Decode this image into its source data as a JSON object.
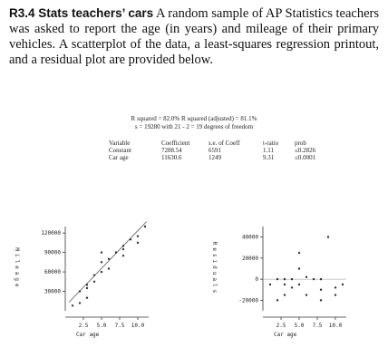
{
  "problem": {
    "label": "R3.4 Stats teachers’ cars",
    "text": "A random sample of AP Statistics teachers was asked to report the age (in years) and mileage of their primary vehicles. A scatterplot of the data, a least-squares regression printout, and a residual plot are provided below."
  },
  "printout": {
    "summary": [
      "R squared = 82.0%   R squared (adjusted) = 81.1%",
      "s = 19280 with 21 - 2 = 19 degrees of freedom"
    ],
    "columns": [
      "Variable",
      "Coefficient",
      "s.e. of Coeff",
      "t-ratio",
      "prob"
    ],
    "rows": [
      [
        "Constant",
        7288.54,
        6591,
        1.11,
        "≤0.2826"
      ],
      [
        "Car age",
        11630.6,
        1249,
        9.31,
        "≤0.0001"
      ]
    ]
  },
  "chart_data": [
    {
      "type": "scatter",
      "xlabel": "Car age",
      "ylabel": "Mileage",
      "x": [
        1,
        2,
        2,
        3,
        3,
        3,
        4,
        4,
        5,
        5,
        5,
        6,
        6,
        7,
        8,
        8,
        8,
        9,
        10,
        10,
        11
      ],
      "y": [
        8000,
        12000,
        30000,
        20000,
        35000,
        40000,
        45000,
        55000,
        60000,
        75000,
        90000,
        65000,
        80000,
        90000,
        85000,
        95000,
        100000,
        110000,
        115000,
        105000,
        130000
      ],
      "xlim": [
        0,
        11.5
      ],
      "ylim": [
        0,
        130000
      ],
      "xticks": [
        2.5,
        {
          "value": 5,
          "label": "5.0"
        },
        7.5,
        {
          "value": 10,
          "label": "10.0"
        }
      ],
      "yticks": [
        30000,
        60000,
        90000,
        120000
      ],
      "color": "#333333"
    },
    {
      "type": "scatter",
      "xlabel": "Car age",
      "ylabel": "Residuals",
      "x": [
        1,
        2,
        2,
        3,
        3,
        3,
        4,
        4,
        5,
        5,
        5,
        6,
        6,
        7,
        8,
        8,
        8,
        9,
        10,
        10,
        11
      ],
      "y": [
        -5000,
        -20000,
        0,
        -15000,
        -5000,
        0,
        -8000,
        0,
        -5000,
        10000,
        25000,
        -15000,
        2000,
        0,
        -20000,
        -10000,
        0,
        40000,
        -8000,
        -15000,
        -5000
      ],
      "xlim": [
        0,
        11.5
      ],
      "ylim": [
        -30000,
        50000
      ],
      "xticks": [
        2.5,
        {
          "value": 5,
          "label": "5.0"
        },
        7.5,
        {
          "value": 10,
          "label": "10.0"
        }
      ],
      "yticks": [
        -20000,
        0,
        20000,
        40000
      ],
      "color": "#333333"
    }
  ]
}
